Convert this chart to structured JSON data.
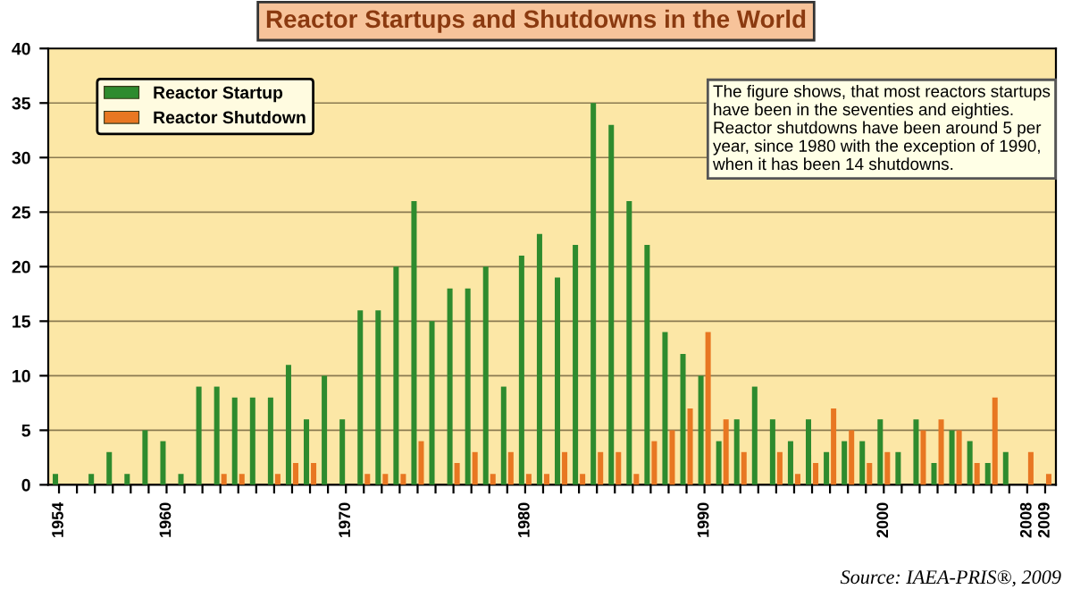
{
  "chart_data": {
    "type": "bar",
    "title": "Reactor Startups and Shutdowns in the World",
    "categories": [
      "1954",
      null,
      null,
      null,
      null,
      null,
      "1960",
      null,
      null,
      null,
      null,
      null,
      null,
      null,
      null,
      null,
      "1970",
      null,
      null,
      null,
      null,
      null,
      null,
      null,
      null,
      null,
      "1980",
      null,
      null,
      null,
      null,
      null,
      null,
      null,
      null,
      null,
      "1990",
      null,
      null,
      null,
      null,
      null,
      null,
      null,
      null,
      null,
      "2000",
      null,
      null,
      null,
      null,
      null,
      null,
      null,
      "2008",
      "2009"
    ],
    "series": [
      {
        "name": "Reactor Startup",
        "color": "#2e8b2e",
        "values": [
          1,
          0,
          1,
          3,
          1,
          5,
          4,
          1,
          9,
          9,
          8,
          8,
          8,
          11,
          6,
          10,
          6,
          16,
          16,
          20,
          26,
          15,
          18,
          18,
          20,
          9,
          21,
          23,
          19,
          22,
          35,
          33,
          26,
          22,
          14,
          12,
          10,
          4,
          6,
          9,
          6,
          4,
          6,
          3,
          4,
          4,
          6,
          3,
          6,
          2,
          5,
          4,
          2,
          3,
          0,
          0
        ]
      },
      {
        "name": "Reactor Shutdown",
        "color": "#e87722",
        "values": [
          0,
          0,
          0,
          0,
          0,
          0,
          0,
          0,
          0,
          1,
          1,
          0,
          1,
          2,
          2,
          0,
          0,
          1,
          1,
          1,
          4,
          0,
          2,
          3,
          1,
          3,
          1,
          1,
          3,
          1,
          3,
          3,
          1,
          4,
          5,
          7,
          14,
          6,
          3,
          0,
          3,
          1,
          2,
          7,
          5,
          2,
          3,
          0,
          5,
          6,
          5,
          2,
          8,
          0,
          3,
          1
        ]
      }
    ],
    "ylim": [
      0,
      40
    ],
    "yticks": [
      0,
      5,
      10,
      15,
      20,
      25,
      30,
      35,
      40
    ],
    "grid": "y",
    "legend": "top left",
    "annotations": [
      "The figure shows, that most reactors startups have been in the seventies and eighties. Reactor shutdowns have been around 5 per year, since 1980 with the exception of 1990, when it has been 14 shutdowns.",
      "Source: IAEA-PRIS®, 2009"
    ]
  }
}
